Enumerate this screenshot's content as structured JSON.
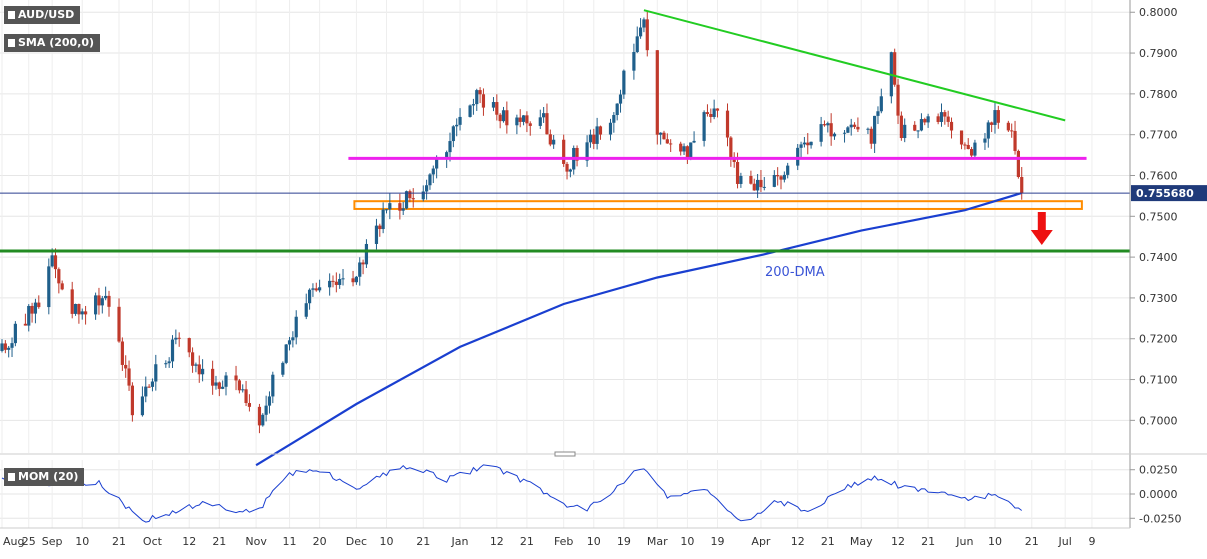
{
  "symbol_label": "AUD/USD",
  "sma_label": "SMA (200,0)",
  "momentum_label": "MOM (20)",
  "price_tag": "0.755680",
  "dma_label": "200-DMA",
  "colors": {
    "up": "#1f5f8b",
    "down": "#c0392b",
    "sma": "#1a3fd0",
    "resistance_trend": "#22cc22",
    "horizontal_resistance": "#ee22ee",
    "support_zone": "#ff8c00",
    "key_support": "#228b22",
    "arrow": "#ee1111",
    "momentum": "#1a3fd0"
  },
  "chart_data": [
    {
      "type": "candlestick",
      "title": "AUD/USD",
      "ylim": [
        0.692,
        0.803
      ],
      "y_ticks": [
        "0.8000",
        "0.7900",
        "0.7800",
        "0.7700",
        "0.7600",
        "0.7500",
        "0.7400",
        "0.7300",
        "0.7200",
        "0.7100",
        "0.7000"
      ],
      "x_labels": [
        "Aug",
        "25",
        "Sep",
        "10",
        "21",
        "Oct",
        "12",
        "21",
        "Nov",
        "11",
        "20",
        "Dec",
        "10",
        "21",
        "Jan",
        "12",
        "21",
        "Feb",
        "10",
        "19",
        "Mar",
        "10",
        "19",
        "Apr",
        "12",
        "21",
        "May",
        "12",
        "21",
        "Jun",
        "10",
        "21",
        "Jul",
        "9"
      ],
      "last_price": 0.75568,
      "anchors": [
        {
          "date": "Aug 17",
          "close": 0.717
        },
        {
          "date": "Aug 28",
          "close": 0.73
        },
        {
          "date": "Sep 01",
          "close": 0.74
        },
        {
          "date": "Sep 07",
          "close": 0.727
        },
        {
          "date": "Sep 18",
          "close": 0.73
        },
        {
          "date": "Sep 25",
          "close": 0.703
        },
        {
          "date": "Oct 09",
          "close": 0.72
        },
        {
          "date": "Oct 19",
          "close": 0.709
        },
        {
          "date": "Oct 26",
          "close": 0.71
        },
        {
          "date": "Nov 02",
          "close": 0.701
        },
        {
          "date": "Nov 16",
          "close": 0.73
        },
        {
          "date": "Nov 30",
          "close": 0.735
        },
        {
          "date": "Dec 09",
          "close": 0.75
        },
        {
          "date": "Dec 21",
          "close": 0.758
        },
        {
          "date": "Jan 06",
          "close": 0.78
        },
        {
          "date": "Jan 18",
          "close": 0.772
        },
        {
          "date": "Jan 25",
          "close": 0.775
        },
        {
          "date": "Feb 01",
          "close": 0.762
        },
        {
          "date": "Feb 15",
          "close": 0.774
        },
        {
          "date": "Feb 25",
          "close": 0.8
        },
        {
          "date": "Mar 01",
          "close": 0.77
        },
        {
          "date": "Mar 09",
          "close": 0.765
        },
        {
          "date": "Mar 18",
          "close": 0.778
        },
        {
          "date": "Mar 25",
          "close": 0.76
        },
        {
          "date": "Apr 01",
          "close": 0.758
        },
        {
          "date": "Apr 09",
          "close": 0.762
        },
        {
          "date": "Apr 19",
          "close": 0.772
        },
        {
          "date": "May 04",
          "close": 0.77
        },
        {
          "date": "May 10",
          "close": 0.788
        },
        {
          "date": "May 13",
          "close": 0.771
        },
        {
          "date": "May 24",
          "close": 0.775
        },
        {
          "date": "Jun 04",
          "close": 0.766
        },
        {
          "date": "Jun 10",
          "close": 0.776
        },
        {
          "date": "Jun 15",
          "close": 0.77
        },
        {
          "date": "Jun 17",
          "close": 0.758
        },
        {
          "date": "Jun 18",
          "close": 0.7557
        }
      ],
      "sma_200": [
        {
          "date": "Nov 01",
          "value": 0.689
        },
        {
          "date": "Nov 15",
          "value": 0.696
        },
        {
          "date": "Dec 01",
          "value": 0.704
        },
        {
          "date": "Jan 01",
          "value": 0.718
        },
        {
          "date": "Feb 01",
          "value": 0.7285
        },
        {
          "date": "Mar 01",
          "value": 0.735
        },
        {
          "date": "Apr 01",
          "value": 0.7405
        },
        {
          "date": "May 01",
          "value": 0.7465
        },
        {
          "date": "Jun 01",
          "value": 0.7515
        },
        {
          "date": "Jun 18",
          "value": 0.7557
        }
      ],
      "annotations": [
        {
          "kind": "trendline",
          "name": "resistance",
          "from": {
            "date": "Feb 25",
            "price": 0.8005
          },
          "to": {
            "date": "Jul 01",
            "price": 0.7735
          }
        },
        {
          "kind": "horizontal",
          "name": "resistance",
          "price": 0.7642,
          "from": "Dec 01",
          "to": "Jul 02"
        },
        {
          "kind": "zone",
          "name": "support",
          "price_low": 0.7518,
          "price_high": 0.7537,
          "from": "Dec 01",
          "to": "Jul 03"
        },
        {
          "kind": "horizontal",
          "name": "key-support",
          "price": 0.7415
        },
        {
          "kind": "arrow",
          "direction": "down",
          "date": "Jun 24"
        }
      ]
    },
    {
      "type": "line",
      "title": "MOM (20)",
      "ylim": [
        -0.035,
        0.035
      ],
      "y_ticks": [
        "0.0250",
        "0.0000",
        "-0.0250"
      ],
      "anchors": [
        {
          "date": "Aug 17",
          "value": 0.018
        },
        {
          "date": "Sep 01",
          "value": 0.01
        },
        {
          "date": "Sep 15",
          "value": 0.012
        },
        {
          "date": "Sep 28",
          "value": -0.028
        },
        {
          "date": "Oct 15",
          "value": -0.01
        },
        {
          "date": "Nov 01",
          "value": -0.02
        },
        {
          "date": "Nov 10",
          "value": 0.02
        },
        {
          "date": "Nov 20",
          "value": 0.025
        },
        {
          "date": "Dec 01",
          "value": 0.005
        },
        {
          "date": "Dec 15",
          "value": 0.03
        },
        {
          "date": "Dec 28",
          "value": 0.015
        },
        {
          "date": "Jan 10",
          "value": 0.03
        },
        {
          "date": "Jan 22",
          "value": 0.01
        },
        {
          "date": "Feb 01",
          "value": -0.01
        },
        {
          "date": "Feb 08",
          "value": -0.015
        },
        {
          "date": "Feb 18",
          "value": 0.008
        },
        {
          "date": "Feb 24",
          "value": 0.028
        },
        {
          "date": "Mar 05",
          "value": -0.005
        },
        {
          "date": "Mar 15",
          "value": 0.005
        },
        {
          "date": "Mar 22",
          "value": -0.015
        },
        {
          "date": "Mar 28",
          "value": -0.032
        },
        {
          "date": "Apr 05",
          "value": -0.005
        },
        {
          "date": "Apr 15",
          "value": -0.02
        },
        {
          "date": "Apr 25",
          "value": 0.005
        },
        {
          "date": "May 05",
          "value": 0.018
        },
        {
          "date": "May 15",
          "value": 0.005
        },
        {
          "date": "May 25",
          "value": 0.002
        },
        {
          "date": "Jun 02",
          "value": -0.005
        },
        {
          "date": "Jun 10",
          "value": 0.0
        },
        {
          "date": "Jun 15",
          "value": -0.01
        },
        {
          "date": "Jun 18",
          "value": -0.017
        }
      ]
    }
  ]
}
